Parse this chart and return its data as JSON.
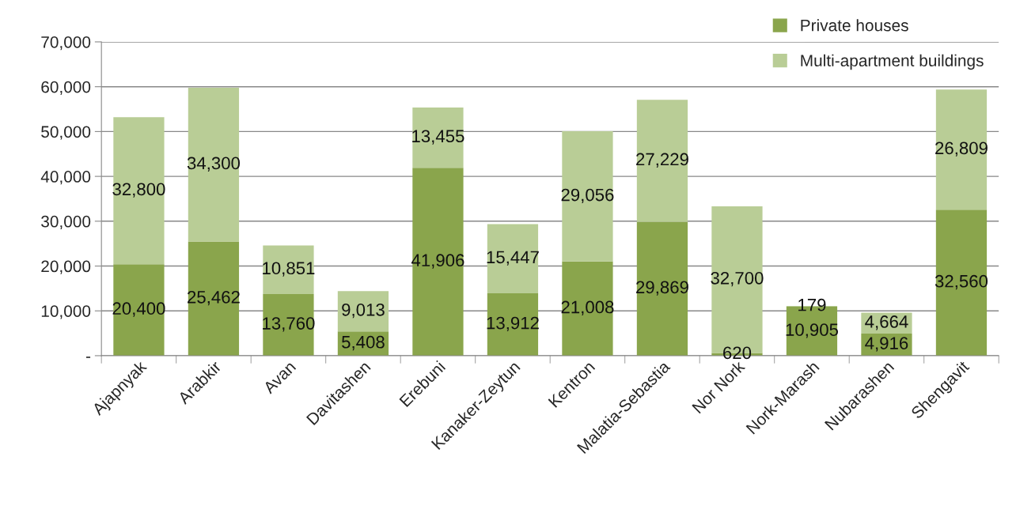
{
  "chart_data": {
    "type": "bar",
    "stacked": true,
    "categories": [
      "Ajapnyak",
      "Arabkir",
      "Avan",
      "Davitashen",
      "Erebuni",
      "Kanaker-Zeytun",
      "Kentron",
      "Malatia-Sebastia",
      "Nor Nork",
      "Nork-Marash",
      "Nubarashen",
      "Shengavit"
    ],
    "series": [
      {
        "name": "Private houses",
        "color": "#8aa54c",
        "values": [
          20400,
          25462,
          13760,
          5408,
          41906,
          13912,
          21008,
          29869,
          620,
          10905,
          4916,
          32560
        ],
        "value_labels": [
          "20,400",
          "25,462",
          "13,760",
          "5,408",
          "41,906",
          "13,912",
          "21,008",
          "29,869",
          "620",
          "10,905",
          "4,916",
          "32,560"
        ]
      },
      {
        "name": "Multi-apartment buildings",
        "color": "#b9cd96",
        "values": [
          32800,
          34300,
          10851,
          9013,
          13455,
          15447,
          29056,
          27229,
          32700,
          179,
          4664,
          26809
        ],
        "value_labels": [
          "32,800",
          "34,300",
          "10,851",
          "9,013",
          "13,455",
          "15,447",
          "29,056",
          "27,229",
          "32,700",
          "179",
          "4,664",
          "26,809"
        ]
      }
    ],
    "ylim": [
      0,
      70000
    ],
    "yticks": [
      {
        "value": 0,
        "label": "-"
      },
      {
        "value": 10000,
        "label": "10,000"
      },
      {
        "value": 20000,
        "label": "20,000"
      },
      {
        "value": 30000,
        "label": "30,000"
      },
      {
        "value": 40000,
        "label": "40,000"
      },
      {
        "value": 50000,
        "label": "50,000"
      },
      {
        "value": 60000,
        "label": "60,000"
      },
      {
        "value": 70000,
        "label": "70,000"
      }
    ],
    "grid": "y",
    "legend": "top right"
  }
}
